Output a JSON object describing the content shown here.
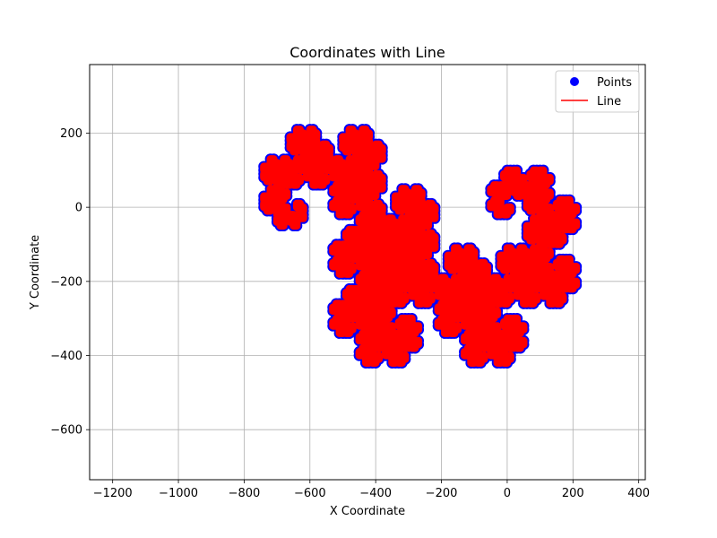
{
  "chart_data": {
    "type": "scatter",
    "title": "Coordinates with Line",
    "xlabel": "X Coordinate",
    "ylabel": "Y Coordinate",
    "xlim": [
      -1270,
      420
    ],
    "ylim": [
      -735,
      385
    ],
    "x_ticks": [
      -1200,
      -1000,
      -800,
      -600,
      -400,
      -200,
      0,
      200,
      400
    ],
    "y_ticks": [
      -600,
      -400,
      -200,
      0,
      200
    ],
    "grid": true,
    "legend_position": "top-right",
    "series": [
      {
        "name": "Points",
        "kind": "points",
        "color": "#0000ff"
      },
      {
        "name": "Line",
        "kind": "line",
        "color": "#ff0000"
      }
    ],
    "curve": {
      "type": "dragon-curve",
      "iterations": 12,
      "segment_length": 10,
      "start": [
        0,
        0
      ],
      "start_heading_deg": 0
    }
  }
}
